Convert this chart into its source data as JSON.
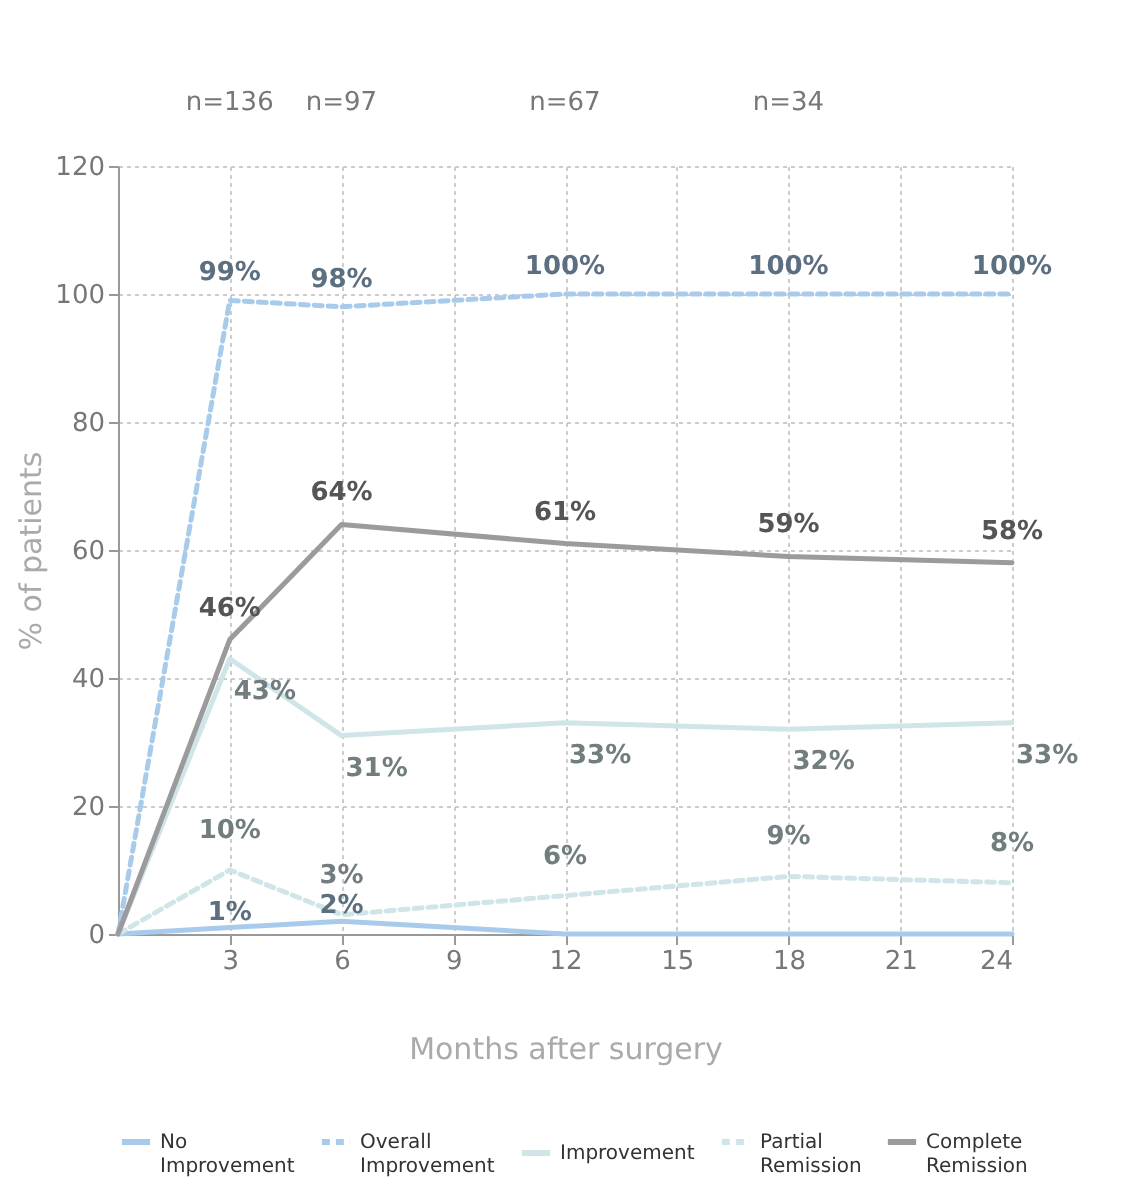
{
  "chart_data": {
    "type": "line",
    "xlabel": "Months after surgery",
    "ylabel": "% of patients",
    "x": [
      0,
      3,
      6,
      12,
      18,
      24
    ],
    "xlim": [
      0,
      24
    ],
    "xticks": [
      3,
      6,
      9,
      12,
      15,
      18,
      21,
      24
    ],
    "ylim": [
      0,
      120
    ],
    "yticks": [
      0,
      20,
      40,
      60,
      80,
      100,
      120
    ],
    "grid": true,
    "legend": "bottom",
    "marker": "none",
    "series": [
      {
        "name": "No Improvement",
        "color": "#a9cbeb",
        "line_style": "solid",
        "values": [
          0,
          1,
          2,
          0,
          0,
          0
        ],
        "value_labels": [
          null,
          "1%",
          "2%",
          null,
          null,
          null
        ]
      },
      {
        "name": "Overall Improvement",
        "color": "#a9cbeb",
        "line_style": "dashed",
        "values": [
          0,
          99,
          98,
          100,
          100,
          100
        ],
        "value_labels": [
          null,
          "99%",
          "98%",
          "100%",
          "100%",
          "100%"
        ]
      },
      {
        "name": "Improvement",
        "color": "#cfe5e8",
        "line_style": "solid",
        "values": [
          0,
          43,
          31,
          33,
          32,
          33
        ],
        "value_labels": [
          null,
          "43%",
          "31%",
          "33%",
          "32%",
          "33%"
        ]
      },
      {
        "name": "Partial Remission",
        "color": "#cfe5e8",
        "line_style": "dashed",
        "values": [
          0,
          10,
          3,
          6,
          9,
          8
        ],
        "value_labels": [
          null,
          "10%",
          "3%",
          "6%",
          "9%",
          "8%"
        ]
      },
      {
        "name": "Complete Remission",
        "color": "#9b9b9e",
        "line_style": "solid",
        "values": [
          0,
          46,
          64,
          61,
          59,
          58
        ],
        "value_labels": [
          null,
          "46%",
          "64%",
          "61%",
          "59%",
          "58%"
        ]
      }
    ],
    "annotations": [
      "n=136",
      "n=97",
      "n=67",
      "n=34"
    ]
  }
}
